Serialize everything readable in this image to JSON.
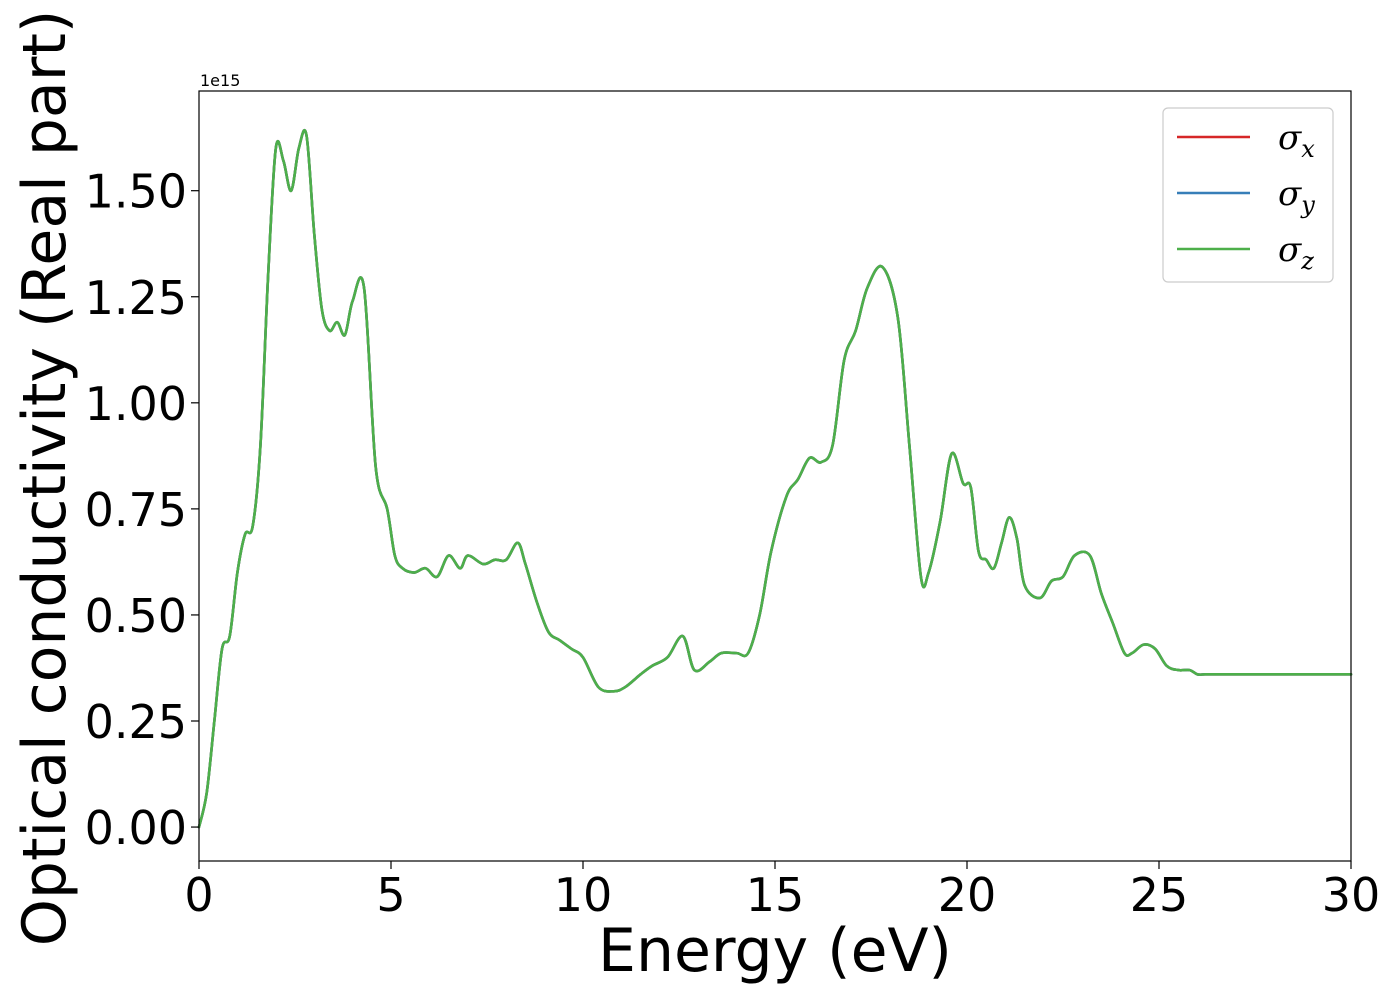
{
  "chart_data": {
    "type": "line",
    "xlabel": "Energy (eV)",
    "ylabel": "Optical conductivity (Real part)",
    "offset_text": "1e15",
    "xlim": [
      0,
      30
    ],
    "ylim": [
      -0.08,
      1.735
    ],
    "xticks": [
      0,
      5,
      10,
      15,
      20,
      25,
      30
    ],
    "xtick_labels": [
      "0",
      "5",
      "10",
      "15",
      "20",
      "25",
      "30"
    ],
    "yticks": [
      0.0,
      0.25,
      0.5,
      0.75,
      1.0,
      1.25,
      1.5
    ],
    "ytick_labels": [
      "0.00",
      "0.25",
      "0.50",
      "0.75",
      "1.00",
      "1.25",
      "1.50"
    ],
    "legend_placement": "top-right",
    "grid": false,
    "x": [
      0.0,
      0.2,
      0.4,
      0.6,
      0.8,
      1.0,
      1.2,
      1.4,
      1.6,
      1.8,
      2.0,
      2.2,
      2.4,
      2.6,
      2.8,
      3.0,
      3.2,
      3.4,
      3.6,
      3.8,
      4.0,
      4.3,
      4.6,
      4.9,
      5.1,
      5.3,
      5.6,
      5.9,
      6.2,
      6.5,
      6.8,
      7.0,
      7.4,
      7.7,
      8.0,
      8.3,
      8.5,
      8.8,
      9.1,
      9.4,
      9.7,
      10.0,
      10.4,
      10.8,
      11.1,
      11.5,
      11.8,
      12.2,
      12.6,
      12.9,
      13.3,
      13.6,
      14.0,
      14.3,
      14.6,
      14.9,
      15.3,
      15.6,
      15.9,
      16.2,
      16.5,
      16.8,
      17.1,
      17.4,
      17.8,
      18.2,
      18.5,
      18.8,
      19.0,
      19.3,
      19.6,
      19.9,
      20.1,
      20.3,
      20.5,
      20.7,
      20.9,
      21.1,
      21.3,
      21.5,
      21.9,
      22.2,
      22.5,
      22.8,
      23.2,
      23.5,
      23.8,
      24.1,
      24.3,
      24.6,
      24.9,
      25.2,
      25.5,
      25.8,
      26.0,
      26.2,
      26.5,
      26.8,
      27.1,
      27.4,
      27.7,
      28.0,
      28.3,
      28.6,
      28.9,
      29.1,
      29.4,
      29.7,
      30.0
    ],
    "series": [
      {
        "name": "σx",
        "color": "#d62728",
        "values": [
          0.0,
          0.08,
          0.25,
          0.42,
          0.45,
          0.6,
          0.69,
          0.71,
          0.9,
          1.3,
          1.6,
          1.57,
          1.5,
          1.6,
          1.63,
          1.4,
          1.22,
          1.17,
          1.19,
          1.16,
          1.24,
          1.27,
          0.85,
          0.75,
          0.64,
          0.61,
          0.6,
          0.61,
          0.59,
          0.64,
          0.61,
          0.64,
          0.62,
          0.63,
          0.63,
          0.67,
          0.62,
          0.53,
          0.46,
          0.44,
          0.42,
          0.4,
          0.33,
          0.32,
          0.33,
          0.36,
          0.38,
          0.4,
          0.45,
          0.37,
          0.39,
          0.41,
          0.41,
          0.41,
          0.5,
          0.65,
          0.78,
          0.82,
          0.87,
          0.86,
          0.9,
          1.1,
          1.17,
          1.27,
          1.32,
          1.2,
          0.9,
          0.59,
          0.6,
          0.72,
          0.88,
          0.81,
          0.8,
          0.65,
          0.63,
          0.61,
          0.67,
          0.73,
          0.68,
          0.57,
          0.54,
          0.58,
          0.59,
          0.64,
          0.64,
          0.55,
          0.48,
          0.41,
          0.41,
          0.43,
          0.42,
          0.38,
          0.37,
          0.37,
          0.36,
          0.36,
          0.36,
          0.36,
          0.36,
          0.36,
          0.36,
          0.36,
          0.36,
          0.36,
          0.36,
          0.36,
          0.36,
          0.36,
          0.36
        ]
      },
      {
        "name": "σy",
        "color": "#377eb8",
        "values": [
          0.0,
          0.08,
          0.25,
          0.42,
          0.45,
          0.6,
          0.69,
          0.71,
          0.9,
          1.3,
          1.6,
          1.57,
          1.5,
          1.6,
          1.63,
          1.4,
          1.22,
          1.17,
          1.19,
          1.16,
          1.24,
          1.27,
          0.85,
          0.75,
          0.64,
          0.61,
          0.6,
          0.61,
          0.59,
          0.64,
          0.61,
          0.64,
          0.62,
          0.63,
          0.63,
          0.67,
          0.62,
          0.53,
          0.46,
          0.44,
          0.42,
          0.4,
          0.33,
          0.32,
          0.33,
          0.36,
          0.38,
          0.4,
          0.45,
          0.37,
          0.39,
          0.41,
          0.41,
          0.41,
          0.5,
          0.65,
          0.78,
          0.82,
          0.87,
          0.86,
          0.9,
          1.1,
          1.17,
          1.27,
          1.32,
          1.2,
          0.9,
          0.59,
          0.6,
          0.72,
          0.88,
          0.81,
          0.8,
          0.65,
          0.63,
          0.61,
          0.67,
          0.73,
          0.68,
          0.57,
          0.54,
          0.58,
          0.59,
          0.64,
          0.64,
          0.55,
          0.48,
          0.41,
          0.41,
          0.43,
          0.42,
          0.38,
          0.37,
          0.37,
          0.36,
          0.36,
          0.36,
          0.36,
          0.36,
          0.36,
          0.36,
          0.36,
          0.36,
          0.36,
          0.36,
          0.36,
          0.36,
          0.36,
          0.36
        ]
      },
      {
        "name": "σz",
        "color": "#4daf4a",
        "values": [
          0.0,
          0.08,
          0.25,
          0.42,
          0.45,
          0.6,
          0.69,
          0.71,
          0.9,
          1.3,
          1.6,
          1.57,
          1.5,
          1.6,
          1.63,
          1.4,
          1.22,
          1.17,
          1.19,
          1.16,
          1.24,
          1.27,
          0.85,
          0.75,
          0.64,
          0.61,
          0.6,
          0.61,
          0.59,
          0.64,
          0.61,
          0.64,
          0.62,
          0.63,
          0.63,
          0.67,
          0.62,
          0.53,
          0.46,
          0.44,
          0.42,
          0.4,
          0.33,
          0.32,
          0.33,
          0.36,
          0.38,
          0.4,
          0.45,
          0.37,
          0.39,
          0.41,
          0.41,
          0.41,
          0.5,
          0.65,
          0.78,
          0.82,
          0.87,
          0.86,
          0.9,
          1.1,
          1.17,
          1.27,
          1.32,
          1.2,
          0.9,
          0.59,
          0.6,
          0.72,
          0.88,
          0.81,
          0.8,
          0.65,
          0.63,
          0.61,
          0.67,
          0.73,
          0.68,
          0.57,
          0.54,
          0.58,
          0.59,
          0.64,
          0.64,
          0.55,
          0.48,
          0.41,
          0.41,
          0.43,
          0.42,
          0.38,
          0.37,
          0.37,
          0.36,
          0.36,
          0.36,
          0.36,
          0.36,
          0.36,
          0.36,
          0.36,
          0.36,
          0.36,
          0.36,
          0.36,
          0.36,
          0.36,
          0.36
        ]
      }
    ],
    "legend": [
      {
        "symbol": "σ",
        "subscript": "x",
        "color": "#d62728"
      },
      {
        "symbol": "σ",
        "subscript": "y",
        "color": "#377eb8"
      },
      {
        "symbol": "σ",
        "subscript": "z",
        "color": "#4daf4a"
      }
    ]
  }
}
